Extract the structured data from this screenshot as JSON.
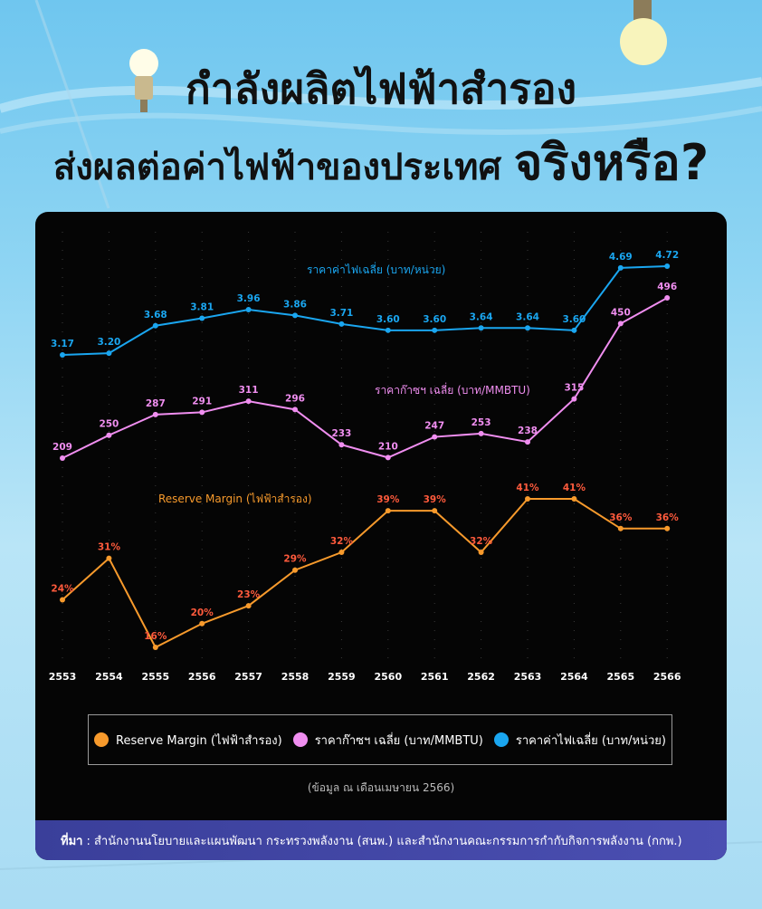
{
  "header": {
    "title_line1": "กำลังผลิตไฟฟ้าสำรอง",
    "title_line2": "ส่งผลต่อค่าไฟฟ้าของประเทศ",
    "title_emphasis": "จริงหรือ?"
  },
  "chart_data": {
    "type": "line",
    "x": [
      "2553",
      "2554",
      "2555",
      "2556",
      "2557",
      "2558",
      "2559",
      "2560",
      "2561",
      "2562",
      "2563",
      "2564",
      "2565",
      "2566"
    ],
    "series": [
      {
        "name": "ราคาค่าไฟเฉลี่ย (บาท/หน่วย)",
        "color": "#1aa6f0",
        "values": [
          3.17,
          3.2,
          3.68,
          3.81,
          3.96,
          3.86,
          3.71,
          3.6,
          3.6,
          3.64,
          3.64,
          3.6,
          4.69,
          4.72
        ],
        "labels": [
          "3.17",
          "3.20",
          "3.68",
          "3.81",
          "3.96",
          "3.86",
          "3.71",
          "3.60",
          "3.60",
          "3.64",
          "3.64",
          "3.60",
          "4.69",
          "4.72"
        ]
      },
      {
        "name": "ราคาก๊าซฯ เฉลี่ย (บาท/MMBTU)",
        "color": "#f08ef0",
        "values": [
          209,
          250,
          287,
          291,
          311,
          296,
          233,
          210,
          247,
          253,
          238,
          315,
          450,
          496
        ],
        "labels": [
          "209",
          "250",
          "287",
          "291",
          "311",
          "296",
          "233",
          "210",
          "247",
          "253",
          "238",
          "315",
          "450",
          "496"
        ]
      },
      {
        "name": "Reserve Margin (ไฟฟ้าสำรอง)",
        "color": "#f79a2c",
        "label_color": "#ff5a3c",
        "values": [
          24,
          31,
          16,
          20,
          23,
          29,
          32,
          39,
          39,
          32,
          41,
          41,
          36,
          36
        ],
        "labels": [
          "24%",
          "31%",
          "16%",
          "20%",
          "23%",
          "29%",
          "32%",
          "39%",
          "39%",
          "32%",
          "41%",
          "41%",
          "36%",
          "36%"
        ]
      }
    ],
    "legend": [
      {
        "name": "Reserve Margin (ไฟฟ้าสำรอง)",
        "color": "#f79a2c"
      },
      {
        "name": "ราคาก๊าซฯ เฉลี่ย (บาท/MMBTU)",
        "color": "#f08ef0"
      },
      {
        "name": "ราคาค่าไฟเฉลี่ย (บาท/หน่วย)",
        "color": "#1aa6f0"
      }
    ],
    "legend_placement": "bottom"
  },
  "footer": {
    "note": "(ข้อมูล ณ เดือนเมษายน 2566)",
    "source_label": "ที่มา",
    "source_text": ": สำนักงานนโยบายและแผนพัฒนา กระทรวงพลังงาน (สนพ.) และสำนักงานคณะกรรมการกำกับกิจการพลังงาน (กกพ.)"
  },
  "icons": [
    "light-bulb-icon"
  ]
}
